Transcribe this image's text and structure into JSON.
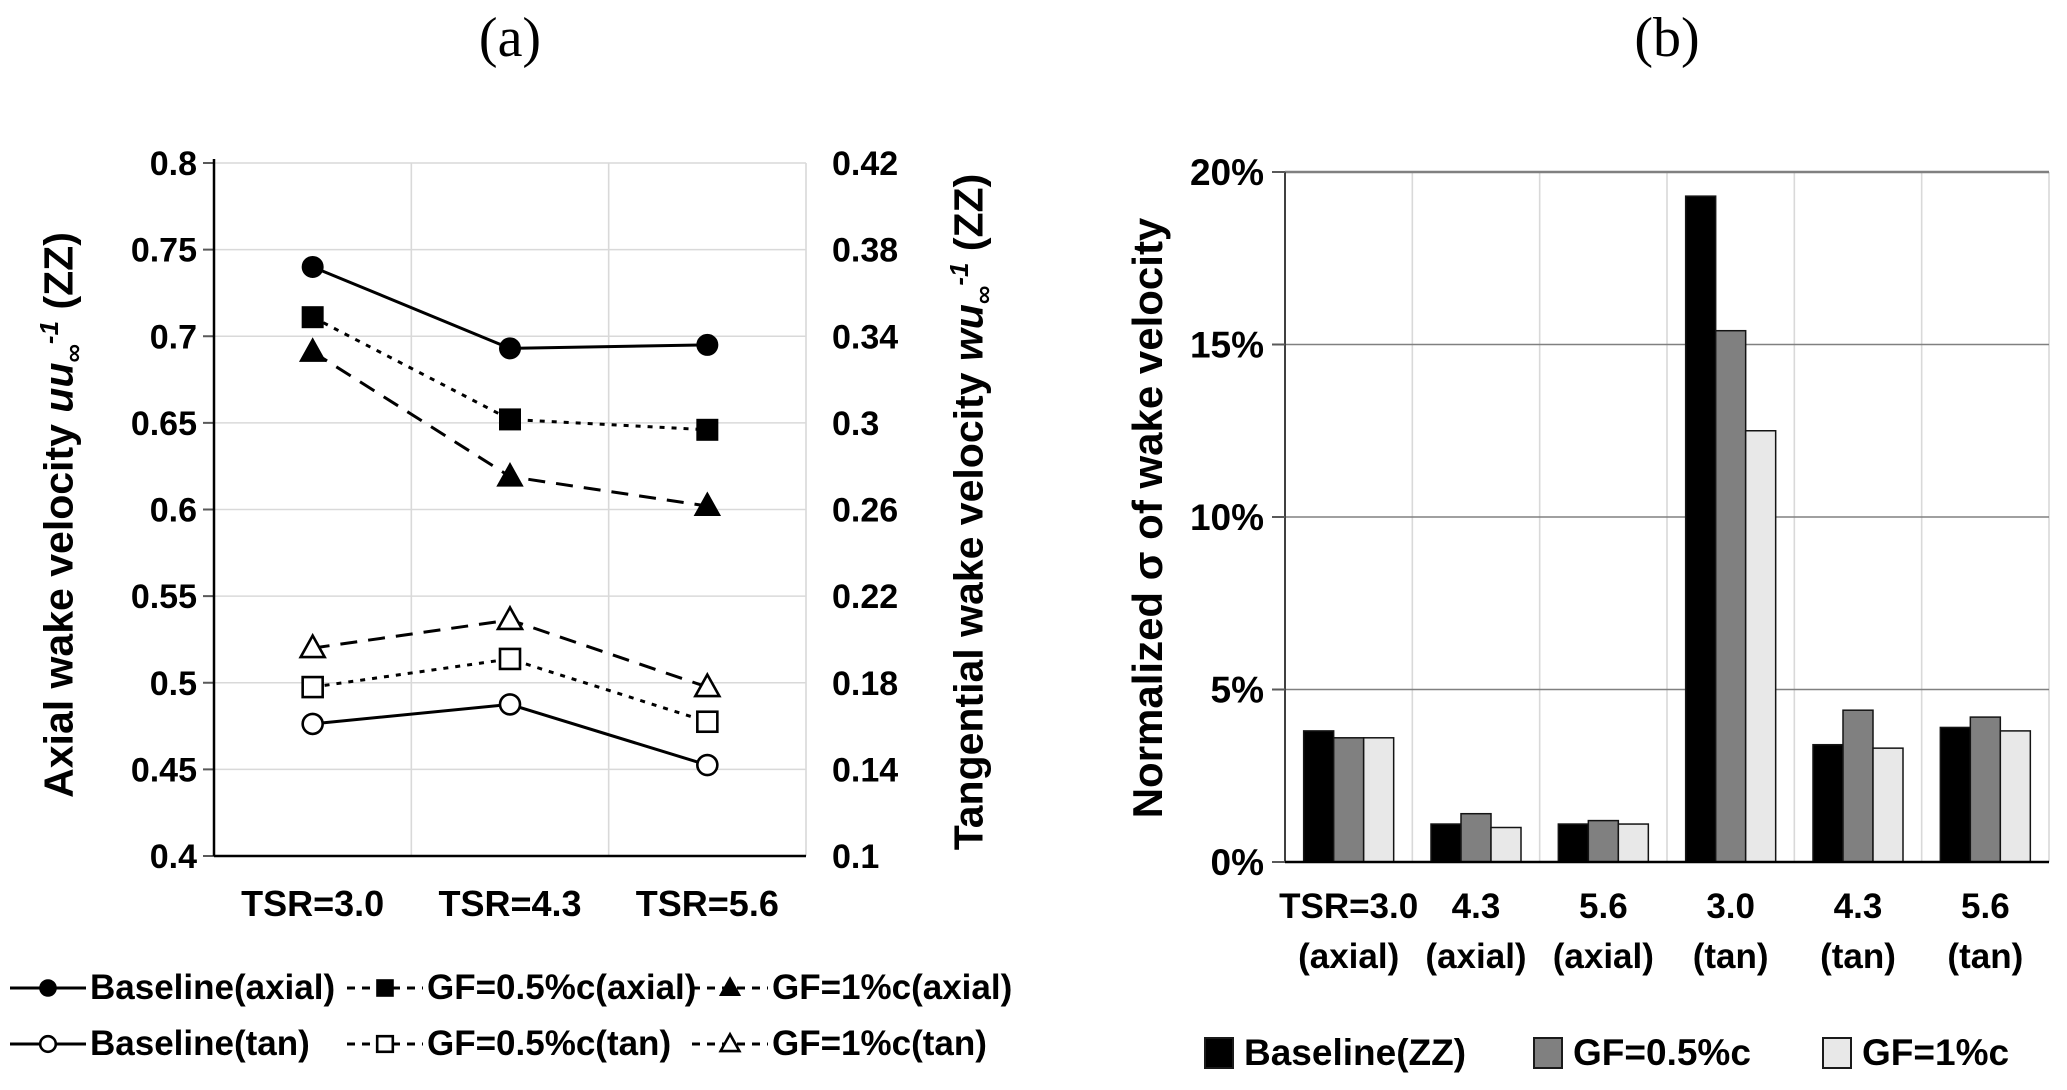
{
  "colors": {
    "grid_light": "#d9d9d9",
    "grid_dark": "#808080",
    "axis": "#000000",
    "bar_black": "#000000",
    "bar_gray": "#808080",
    "bar_lightgray": "#e8e8e8"
  },
  "chart_data": [
    {
      "type": "line",
      "panel_label": "(a)",
      "categories": [
        "TSR=3.0",
        "TSR=4.3",
        "TSR=5.6"
      ],
      "y_left": {
        "label": "Axial wake velocity uu∞⁻¹ (ZZ)",
        "label_parts": {
          "prefix": "Axial wake velocity ",
          "var": "uu",
          "sub": "∞",
          "sup": "-1",
          "suffix": " (ZZ)"
        },
        "min": 0.4,
        "max": 0.8,
        "step": 0.05,
        "ticks": [
          "0.8",
          "0.75",
          "0.7",
          "0.65",
          "0.6",
          "0.55",
          "0.5",
          "0.45",
          "0.4"
        ]
      },
      "y_right": {
        "label": "Tangential wake velocity wu∞⁻¹ (ZZ)",
        "label_parts": {
          "prefix": "Tangential wake velocity ",
          "var": "wu",
          "sub": "∞",
          "sup": "-1",
          "suffix": " (ZZ)"
        },
        "min": 0.1,
        "max": 0.42,
        "step": 0.04,
        "ticks": [
          "0.42",
          "0.38",
          "0.34",
          "0.3",
          "0.26",
          "0.22",
          "0.18",
          "0.14",
          "0.1"
        ]
      },
      "grid": true,
      "legend_position": "bottom",
      "series": [
        {
          "name": "Baseline(axial)",
          "axis": "left",
          "marker": "circle",
          "fill": "filled",
          "line": "solid",
          "values": [
            0.74,
            0.693,
            0.695
          ]
        },
        {
          "name": "GF=0.5%c(axial)",
          "axis": "left",
          "marker": "square",
          "fill": "filled",
          "line": "dotted",
          "values": [
            0.711,
            0.652,
            0.646
          ]
        },
        {
          "name": "GF=1%c(axial)",
          "axis": "left",
          "marker": "triangle",
          "fill": "filled",
          "line": "dashed",
          "values": [
            0.691,
            0.619,
            0.602
          ]
        },
        {
          "name": "Baseline(tan)",
          "axis": "right",
          "marker": "circle",
          "fill": "open",
          "line": "solid",
          "values": [
            0.161,
            0.17,
            0.142
          ]
        },
        {
          "name": "GF=0.5%c(tan)",
          "axis": "right",
          "marker": "square",
          "fill": "open",
          "line": "dotted",
          "values": [
            0.178,
            0.191,
            0.162
          ]
        },
        {
          "name": "GF=1%c(tan)",
          "axis": "right",
          "marker": "triangle",
          "fill": "open",
          "line": "dashed",
          "values": [
            0.196,
            0.209,
            0.178
          ]
        }
      ]
    },
    {
      "type": "bar",
      "panel_label": "(b)",
      "ylabel": "Normalized σ of wake velocity",
      "ymin": 0,
      "ymax": 20,
      "ticks": [
        "20%",
        "15%",
        "10%",
        "5%",
        "0%"
      ],
      "tick_values": [
        20,
        15,
        10,
        5,
        0
      ],
      "grid": true,
      "legend_position": "bottom",
      "categories": [
        {
          "line1": "TSR=3.0",
          "line2": "(axial)"
        },
        {
          "line1": "4.3",
          "line2": "(axial)"
        },
        {
          "line1": "5.6",
          "line2": "(axial)"
        },
        {
          "line1": "3.0",
          "line2": "(tan)"
        },
        {
          "line1": "4.3",
          "line2": "(tan)"
        },
        {
          "line1": "5.6",
          "line2": "(tan)"
        }
      ],
      "series": [
        {
          "name": "Baseline(ZZ)",
          "color": "#000000",
          "values": [
            3.8,
            1.1,
            1.1,
            19.3,
            3.4,
            3.9
          ]
        },
        {
          "name": "GF=0.5%c",
          "color": "#808080",
          "values": [
            3.6,
            1.4,
            1.2,
            15.4,
            4.4,
            4.2
          ]
        },
        {
          "name": "GF=1%c",
          "color": "#e8e8e8",
          "values": [
            3.6,
            1.0,
            1.1,
            12.5,
            3.3,
            3.8
          ]
        }
      ]
    }
  ]
}
